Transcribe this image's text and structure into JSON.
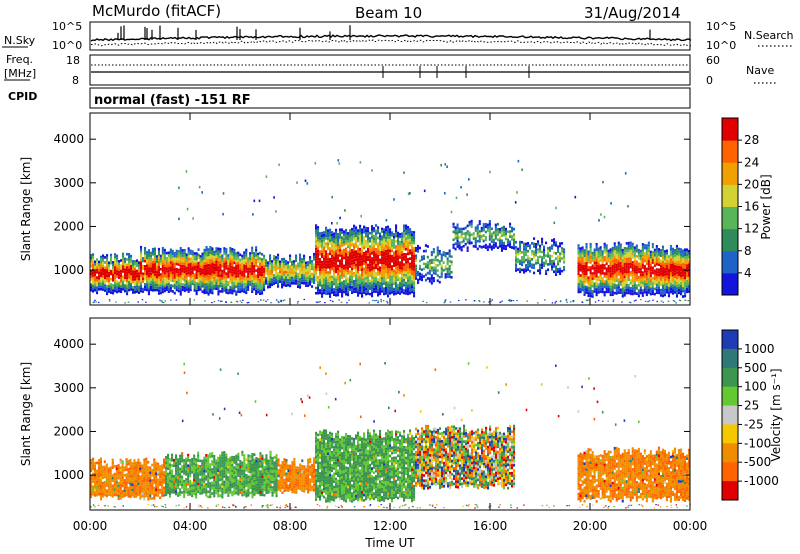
{
  "header": {
    "station": "McMurdo (fitACF)",
    "beam": "Beam 10",
    "date": "31/Aug/2014"
  },
  "noise_panel": {
    "left_label": "N.Sky",
    "right_label": "N.Search",
    "ticks_left": [
      "10^5",
      "10^0"
    ],
    "ticks_right": [
      "10^5",
      "10^0"
    ]
  },
  "freq_panel": {
    "left_label_1": "Freq.",
    "left_label_2": "[MHz]",
    "right_label": "Nave",
    "ticks_left": [
      "18",
      "8"
    ],
    "ticks_right": [
      "60",
      "0"
    ]
  },
  "cpid_panel": {
    "label": "CPID",
    "text": "normal (fast) -151 RF"
  },
  "colors": {
    "power": [
      "#1414dc",
      "#1e64c8",
      "#2f8c5a",
      "#5ab45a",
      "#d2d232",
      "#f0a000",
      "#ff6400",
      "#e10000"
    ],
    "velocity": [
      "#1e3cb4",
      "#2f7878",
      "#3c9650",
      "#64c832",
      "#c8c8c8",
      "#f5c800",
      "#f08c00",
      "#ff6400",
      "#e10000"
    ]
  },
  "chart_data": [
    {
      "type": "heatmap",
      "name": "power",
      "ylabel": "Slant Range [km]",
      "xlabel": "",
      "ylim": [
        200,
        4600
      ],
      "x_ticks": [
        "00:00",
        "04:00",
        "08:00",
        "12:00",
        "16:00",
        "20:00",
        "00:00"
      ],
      "y_ticks": [
        1000,
        2000,
        3000,
        4000
      ],
      "colorbar": {
        "label": "Power [dB]",
        "ticks": [
          "4",
          "8",
          "12",
          "16",
          "20",
          "24",
          "28"
        ],
        "range": [
          0,
          32
        ]
      },
      "echo_regions": [
        {
          "hour_start": 0.0,
          "hour_end": 2.0,
          "range_km": [
            450,
            1300
          ],
          "level": "strong"
        },
        {
          "hour_start": 2.0,
          "hour_end": 7.0,
          "range_km": [
            450,
            1450
          ],
          "level": "strong"
        },
        {
          "hour_start": 7.0,
          "hour_end": 9.0,
          "range_km": [
            600,
            1300
          ],
          "level": "moderate"
        },
        {
          "hour_start": 9.0,
          "hour_end": 13.0,
          "range_km": [
            400,
            1950
          ],
          "level": "strong"
        },
        {
          "hour_start": 13.0,
          "hour_end": 14.5,
          "range_km": [
            700,
            1500
          ],
          "level": "weak"
        },
        {
          "hour_start": 14.5,
          "hour_end": 17.0,
          "range_km": [
            1450,
            2050
          ],
          "level": "weak"
        },
        {
          "hour_start": 17.0,
          "hour_end": 19.0,
          "range_km": [
            900,
            1650
          ],
          "level": "weak"
        },
        {
          "hour_start": 19.5,
          "hour_end": 24.0,
          "range_km": [
            400,
            1550
          ],
          "level": "strong"
        }
      ]
    },
    {
      "type": "heatmap",
      "name": "velocity",
      "ylabel": "Slant Range [km]",
      "xlabel": "Time UT",
      "ylim": [
        200,
        4600
      ],
      "x_ticks": [
        "00:00",
        "04:00",
        "08:00",
        "12:00",
        "16:00",
        "20:00",
        "00:00"
      ],
      "y_ticks": [
        1000,
        2000,
        3000,
        4000
      ],
      "colorbar": {
        "label": "Velocity [m s⁻¹]",
        "ticks": [
          "1000",
          "500",
          "100",
          "25",
          "-25",
          "-100",
          "-500",
          "-1000"
        ]
      },
      "echo_regions": [
        {
          "hour_start": 0.0,
          "hour_end": 3.0,
          "range_km": [
            450,
            1300
          ],
          "sign": "negative"
        },
        {
          "hour_start": 3.0,
          "hour_end": 7.5,
          "range_km": [
            500,
            1450
          ],
          "sign": "positive"
        },
        {
          "hour_start": 7.5,
          "hour_end": 9.0,
          "range_km": [
            600,
            1300
          ],
          "sign": "negative"
        },
        {
          "hour_start": 9.0,
          "hour_end": 13.0,
          "range_km": [
            400,
            1950
          ],
          "sign": "positive"
        },
        {
          "hour_start": 13.0,
          "hour_end": 17.0,
          "range_km": [
            700,
            2050
          ],
          "sign": "mixed"
        },
        {
          "hour_start": 19.5,
          "hour_end": 24.0,
          "range_km": [
            400,
            1550
          ],
          "sign": "negative"
        }
      ]
    }
  ]
}
